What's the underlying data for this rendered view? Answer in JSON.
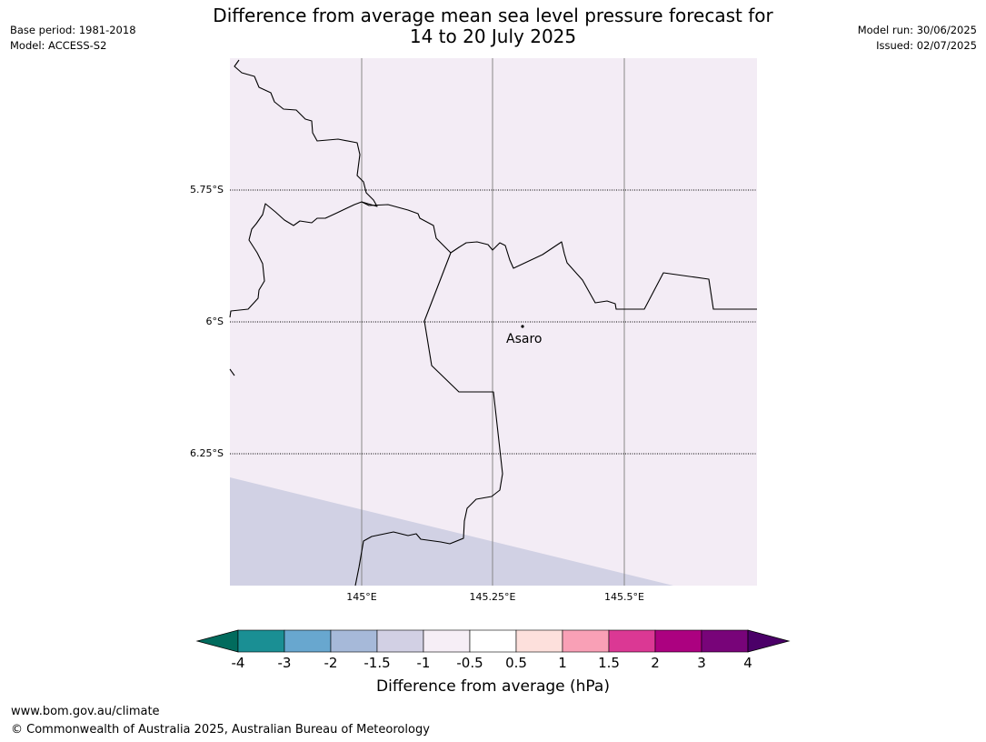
{
  "title": {
    "line1": "Difference from average mean sea level pressure forecast for",
    "line2": "14 to 20 July 2025"
  },
  "meta_left": {
    "base_period": "Base period: 1981-2018",
    "model": "Model: ACCESS-S2"
  },
  "meta_right": {
    "model_run": "Model run: 30/06/2025",
    "issued": "Issued: 02/07/2025"
  },
  "map": {
    "place_label": "Asaro",
    "lat_labels": [
      "5.75°S",
      "6°S",
      "6.25°S"
    ],
    "lon_labels": [
      "145°E",
      "145.25°E",
      "145.5°E"
    ],
    "fill_colors": {
      "range_-0.5_-1": "#f3ecf5",
      "range_-1_-1.5": "#d1d1e4"
    }
  },
  "colorbar": {
    "title": "Difference from average (hPa)",
    "tick_labels": [
      "-4",
      "-3",
      "-2",
      "-1.5",
      "-1",
      "-0.5",
      "0.5",
      "1",
      "1.5",
      "2",
      "3",
      "4"
    ],
    "colors": [
      "#1a8f94",
      "#68a7cf",
      "#a6b9d9",
      "#d2d0e4",
      "#f6eef6",
      "#ffffff",
      "#fde0dc",
      "#f9a0b6",
      "#db3894",
      "#ac0180",
      "#780479"
    ],
    "extend_low_color": "#016b5d",
    "extend_high_color": "#4b0068"
  },
  "footer": {
    "url": "www.bom.gov.au/climate",
    "copyright": "© Commonwealth of Australia 2025, Australian Bureau of Meteorology"
  }
}
